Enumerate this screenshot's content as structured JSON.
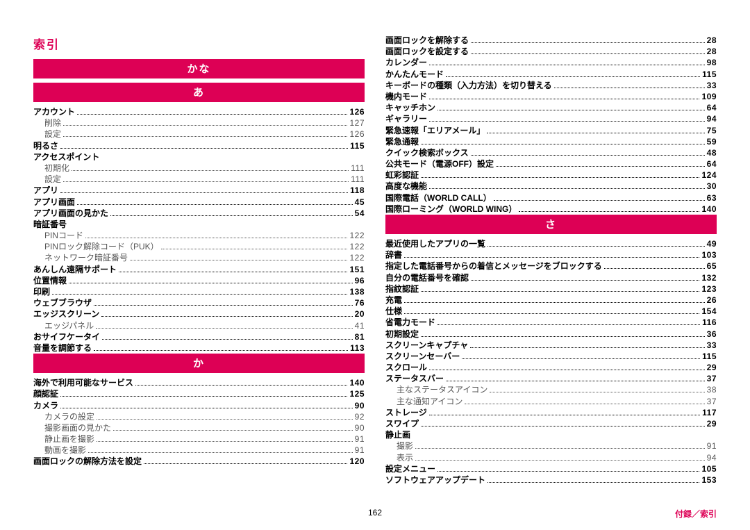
{
  "colors": {
    "accent": "#dd0055",
    "text": "#000000",
    "subtext": "#555555",
    "bg": "#ffffff"
  },
  "title": "索引",
  "footer": {
    "page": "162",
    "section": "付録／索引"
  },
  "columns": [
    {
      "blocks": [
        {
          "heading": "かな"
        },
        {
          "heading": "あ"
        },
        {
          "entries": [
            {
              "label": "アカウント",
              "val": "126"
            },
            {
              "label": "削除",
              "val": "127",
              "sub": true
            },
            {
              "label": "設定",
              "val": "126",
              "sub": true
            },
            {
              "label": "明るさ",
              "val": "115"
            },
            {
              "label": "アクセスポイント"
            },
            {
              "label": "初期化",
              "val": "111",
              "sub": true
            },
            {
              "label": "設定",
              "val": "111",
              "sub": true
            },
            {
              "label": "アプリ",
              "val": "118"
            },
            {
              "label": "アプリ画面",
              "val": "45"
            },
            {
              "label": "アプリ画面の見かた",
              "val": "54"
            },
            {
              "label": "暗証番号"
            },
            {
              "label": "PINコード",
              "val": "122",
              "sub": true
            },
            {
              "label": "PINロック解除コード（PUK）",
              "val": "122",
              "sub": true
            },
            {
              "label": "ネットワーク暗証番号",
              "val": "122",
              "sub": true
            },
            {
              "label": "あんしん遠隔サポート",
              "val": "151"
            },
            {
              "label": "位置情報",
              "val": "96"
            },
            {
              "label": "印刷",
              "val": "138"
            },
            {
              "label": "ウェブブラウザ",
              "val": "76"
            },
            {
              "label": "エッジスクリーン",
              "val": "20"
            },
            {
              "label": "エッジパネル",
              "val": "41",
              "sub": true
            },
            {
              "label": "おサイフケータイ",
              "val": "81"
            },
            {
              "label": "音量を調節する",
              "val": "113"
            }
          ]
        },
        {
          "heading": "か"
        },
        {
          "entries": [
            {
              "label": "海外で利用可能なサービス",
              "val": "140"
            },
            {
              "label": "顔認証",
              "val": "125"
            },
            {
              "label": "カメラ",
              "val": "90"
            },
            {
              "label": "カメラの設定",
              "val": "92",
              "sub": true
            },
            {
              "label": "撮影画面の見かた",
              "val": "90",
              "sub": true
            },
            {
              "label": "静止画を撮影",
              "val": "91",
              "sub": true
            },
            {
              "label": "動画を撮影",
              "val": "91",
              "sub": true
            },
            {
              "label": "画面ロックの解除方法を設定",
              "val": "120"
            }
          ]
        }
      ]
    },
    {
      "blocks": [
        {
          "entries": [
            {
              "label": "画面ロックを解除する",
              "val": "28"
            },
            {
              "label": "画面ロックを設定する",
              "val": "28"
            },
            {
              "label": "カレンダー",
              "val": "98"
            },
            {
              "label": "かんたんモード",
              "val": "115"
            },
            {
              "label": "キーボードの種類（入力方法）を切り替える",
              "val": "33"
            },
            {
              "label": "機内モード",
              "val": "109"
            },
            {
              "label": "キャッチホン",
              "val": "64"
            },
            {
              "label": "ギャラリー",
              "val": "94"
            },
            {
              "label": "緊急速報「エリアメール」",
              "val": "75"
            },
            {
              "label": "緊急通報",
              "val": "59"
            },
            {
              "label": "クイック検索ボックス",
              "val": "48"
            },
            {
              "label": "公共モード（電源OFF）設定",
              "val": "64"
            },
            {
              "label": "虹彩認証",
              "val": "124"
            },
            {
              "label": "高度な機能",
              "val": "30"
            },
            {
              "label": "国際電話（WORLD CALL）",
              "val": "63"
            },
            {
              "label": "国際ローミング（WORLD WING）",
              "val": "140"
            }
          ]
        },
        {
          "heading": "さ"
        },
        {
          "entries": [
            {
              "label": "最近使用したアプリの一覧",
              "val": "49"
            },
            {
              "label": "辞書",
              "val": "103"
            },
            {
              "label": "指定した電話番号からの着信とメッセージをブロックする",
              "val": "65"
            },
            {
              "label": "自分の電話番号を確認",
              "val": "132"
            },
            {
              "label": "指紋認証",
              "val": "123"
            },
            {
              "label": "充電",
              "val": "26"
            },
            {
              "label": "仕様",
              "val": "154"
            },
            {
              "label": "省電力モード",
              "val": "116"
            },
            {
              "label": "初期設定",
              "val": "36"
            },
            {
              "label": "スクリーンキャプチャ",
              "val": "33"
            },
            {
              "label": "スクリーンセーバー",
              "val": "115"
            },
            {
              "label": "スクロール",
              "val": "29"
            },
            {
              "label": "ステータスバー",
              "val": "37"
            },
            {
              "label": "主なステータスアイコン",
              "val": "38",
              "sub": true
            },
            {
              "label": "主な通知アイコン",
              "val": "37",
              "sub": true
            },
            {
              "label": "ストレージ",
              "val": "117"
            },
            {
              "label": "スワイプ",
              "val": "29"
            },
            {
              "label": "静止画"
            },
            {
              "label": "撮影",
              "val": "91",
              "sub": true
            },
            {
              "label": "表示",
              "val": "94",
              "sub": true
            },
            {
              "label": "設定メニュー",
              "val": "105"
            },
            {
              "label": "ソフトウェアアップデート",
              "val": "153"
            }
          ]
        }
      ]
    }
  ]
}
